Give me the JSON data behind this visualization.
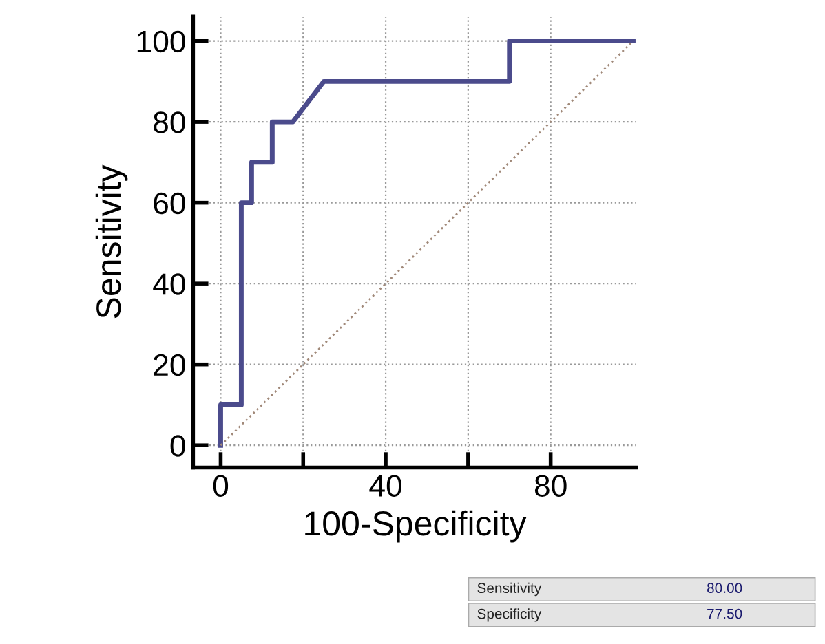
{
  "chart_data": {
    "type": "line",
    "xlabel": "100-Specificity",
    "ylabel": "Sensitivity",
    "series": [
      {
        "x": [
          0,
          0,
          5,
          5,
          7.5,
          7.5,
          12.5,
          12.5,
          17.5,
          25,
          70,
          70,
          100
        ],
        "values": [
          0,
          10,
          10,
          60,
          60,
          70,
          70,
          80,
          80,
          90,
          90,
          100,
          100
        ],
        "color": "#4b4b8c",
        "line_style": "solid"
      },
      {
        "x": [
          0,
          100
        ],
        "values": [
          0,
          100
        ],
        "color": "#a08878",
        "line_style": "dotted"
      }
    ],
    "xlim": [
      -6.7,
      100.7
    ],
    "ylim": [
      -5.5,
      106
    ],
    "xticks": [
      0,
      {
        "value": 20,
        "label": null
      },
      40,
      {
        "value": 60,
        "label": null
      },
      80
    ],
    "yticks": [
      0,
      20,
      40,
      60,
      80,
      100
    ],
    "grid": true,
    "marker": "none",
    "annotations": [
      "Sensitivity",
      "80.00",
      "Specificity",
      "77.50"
    ]
  }
}
